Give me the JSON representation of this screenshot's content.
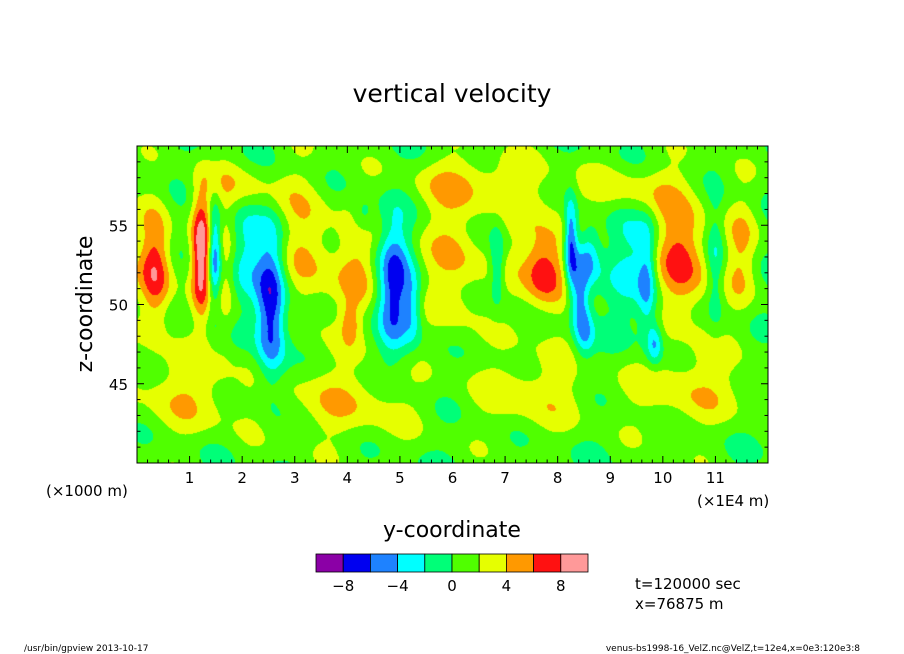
{
  "chart_data": {
    "type": "heatmap",
    "title": "vertical velocity",
    "xlabel": "y-coordinate",
    "ylabel": "z-coordinate",
    "x_ticks": [
      1,
      2,
      3,
      4,
      5,
      6,
      7,
      8,
      9,
      10,
      11
    ],
    "x_tick_labels": [
      "1",
      "2",
      "3",
      "4",
      "5",
      "6",
      "7",
      "8",
      "9",
      "10",
      "11"
    ],
    "x_scale_note": "(×1E4 m)",
    "y_ticks": [
      45,
      50,
      55
    ],
    "y_tick_labels": [
      "45",
      "50",
      "55"
    ],
    "y_scale_note": "(×1000 m)",
    "xlim": [
      0,
      12
    ],
    "ylim": [
      40,
      60
    ],
    "color_levels": [
      -10,
      -8,
      -6,
      -4,
      -2,
      0,
      2,
      4,
      6,
      8,
      10
    ],
    "colorbar_tick_values": [
      -8,
      -4,
      0,
      4,
      8
    ],
    "colorbar_tick_labels": [
      "−8",
      "−4",
      "0",
      "4",
      "8"
    ],
    "colorbar_colors": [
      "#8b00a6",
      "#0000f0",
      "#1e82ff",
      "#00ffff",
      "#00ff78",
      "#50ff00",
      "#e6ff00",
      "#ff9900",
      "#ff1111",
      "#ff9999"
    ],
    "background_value": 0.5,
    "features": [
      {
        "y": 0.35,
        "z": 52.2,
        "sy": 0.22,
        "sz": 2.6,
        "w": 7.5
      },
      {
        "y": 1.22,
        "z": 53.2,
        "sy": 0.13,
        "sz": 2.6,
        "w": 9.0
      },
      {
        "y": 1.48,
        "z": 53.2,
        "sy": 0.09,
        "sz": 2.2,
        "w": -7.5
      },
      {
        "y": 1.68,
        "z": 51.8,
        "sy": 0.14,
        "sz": 2.6,
        "w": 3.0
      },
      {
        "y": 2.1,
        "z": 53.5,
        "sy": 0.22,
        "sz": 2.4,
        "w": -2.5
      },
      {
        "y": 2.55,
        "z": 50.0,
        "sy": 0.2,
        "sz": 3.4,
        "w": -9.0
      },
      {
        "y": 3.25,
        "z": 53.2,
        "sy": 0.35,
        "sz": 3.2,
        "w": 4.0
      },
      {
        "y": 4.2,
        "z": 52.0,
        "sy": 0.3,
        "sz": 2.6,
        "w": 3.5
      },
      {
        "y": 4.05,
        "z": 48.8,
        "sy": 0.12,
        "sz": 0.9,
        "w": 3.0
      },
      {
        "y": 4.9,
        "z": 51.0,
        "sy": 0.22,
        "sz": 2.8,
        "w": -7.5
      },
      {
        "y": 5.25,
        "z": 49.8,
        "sy": 0.12,
        "sz": 1.6,
        "w": -3.5
      },
      {
        "y": 4.3,
        "z": 55.5,
        "sy": 0.15,
        "sz": 0.8,
        "w": -3.0
      },
      {
        "y": 6.05,
        "z": 52.8,
        "sy": 0.4,
        "sz": 3.2,
        "w": 3.8
      },
      {
        "y": 6.85,
        "z": 52.5,
        "sy": 0.1,
        "sz": 1.6,
        "w": -4.0
      },
      {
        "y": 7.75,
        "z": 52.8,
        "sy": 0.45,
        "sz": 2.8,
        "w": 4.0
      },
      {
        "y": 7.75,
        "z": 52.0,
        "sy": 0.22,
        "sz": 1.3,
        "w": 4.0
      },
      {
        "y": 8.25,
        "z": 53.8,
        "sy": 0.09,
        "sz": 2.0,
        "w": -8.5
      },
      {
        "y": 8.42,
        "z": 50.5,
        "sy": 0.12,
        "sz": 2.0,
        "w": -6.5
      },
      {
        "y": 8.6,
        "z": 53.0,
        "sy": 0.15,
        "sz": 1.4,
        "w": -5.0
      },
      {
        "y": 8.55,
        "z": 48.2,
        "sy": 0.12,
        "sz": 1.2,
        "w": -3.5
      },
      {
        "y": 9.5,
        "z": 52.5,
        "sy": 0.35,
        "sz": 2.8,
        "w": -3.0
      },
      {
        "y": 9.7,
        "z": 51.5,
        "sy": 0.12,
        "sz": 2.4,
        "w": -4.5
      },
      {
        "y": 9.85,
        "z": 47.5,
        "sy": 0.1,
        "sz": 0.9,
        "w": -5.0
      },
      {
        "y": 10.35,
        "z": 52.8,
        "sy": 0.35,
        "sz": 2.6,
        "w": 7.0
      },
      {
        "y": 11.0,
        "z": 52.5,
        "sy": 0.12,
        "sz": 2.6,
        "w": -3.5
      },
      {
        "y": 11.5,
        "z": 53.0,
        "sy": 0.22,
        "sz": 2.6,
        "w": 3.5
      },
      {
        "y": 1.0,
        "z": 44.5,
        "sy": 0.8,
        "sz": 2.0,
        "w": 3.0
      },
      {
        "y": 4.0,
        "z": 43.8,
        "sy": 0.9,
        "sz": 1.8,
        "w": 3.0
      },
      {
        "y": 7.5,
        "z": 44.5,
        "sy": 0.7,
        "sz": 1.8,
        "w": 3.0
      },
      {
        "y": 10.5,
        "z": 44.8,
        "sy": 0.9,
        "sz": 1.8,
        "w": 3.0
      },
      {
        "y": 2.0,
        "z": 57.3,
        "sy": 0.6,
        "sz": 1.2,
        "w": 3.0
      },
      {
        "y": 6.5,
        "z": 57.8,
        "sy": 0.9,
        "sz": 1.2,
        "w": 3.0
      },
      {
        "y": 9.5,
        "z": 57.3,
        "sy": 0.7,
        "sz": 1.2,
        "w": 3.0
      }
    ]
  },
  "info": {
    "time_label": "t=120000 sec",
    "x_position_label": "x=76875 m"
  },
  "footer": {
    "left": "/usr/bin/gpview  2013-10-17",
    "right": "venus-bs1998-16_VelZ.nc@VelZ,t=12e4,x=0e3:120e3:8"
  }
}
